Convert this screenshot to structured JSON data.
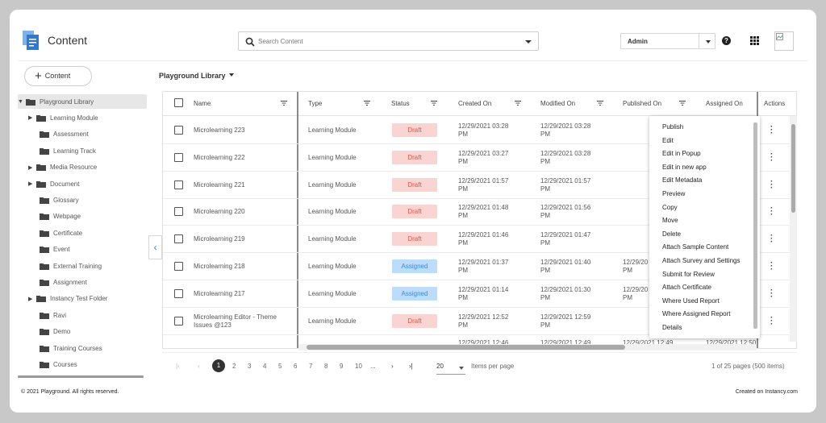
{
  "header": {
    "title": "Content",
    "logo_icon": "content-logo-icon",
    "search_placeholder": "Search Content",
    "user_select": "Admin",
    "help_icon": "?",
    "apps_icon": "grid-icon"
  },
  "sidebar": {
    "add_button": "Content",
    "add_icon": "+",
    "tree": [
      {
        "label": "Playground Library",
        "expandable": true,
        "root": true
      },
      {
        "label": "Learning Module",
        "expandable": true
      },
      {
        "label": "Assessment",
        "expandable": false
      },
      {
        "label": "Learning Track",
        "expandable": false
      },
      {
        "label": "Media Resource",
        "expandable": true
      },
      {
        "label": "Document",
        "expandable": true
      },
      {
        "label": "Glossary",
        "expandable": false
      },
      {
        "label": "Webpage",
        "expandable": false
      },
      {
        "label": "Certificate",
        "expandable": false
      },
      {
        "label": "Event",
        "expandable": false
      },
      {
        "label": "External Training",
        "expandable": false
      },
      {
        "label": "Assignment",
        "expandable": false
      },
      {
        "label": "Instancy Test Folder",
        "expandable": true
      },
      {
        "label": "Ravi",
        "expandable": false
      },
      {
        "label": "Demo",
        "expandable": false
      },
      {
        "label": "Training Courses",
        "expandable": false
      },
      {
        "label": "Courses",
        "expandable": false
      }
    ]
  },
  "library": {
    "label": "Playground Library"
  },
  "table": {
    "columns": [
      "Name",
      "Type",
      "Status",
      "Created On",
      "Modified On",
      "Published On",
      "Assigned On",
      "Actions"
    ],
    "rows": [
      {
        "name": [
          "Microlearning 223"
        ],
        "type": "Learning Module",
        "status": "Draft",
        "created": [
          "12/29/2021 03:28",
          "PM"
        ],
        "modified": [
          "12/29/2021 03:28",
          "PM"
        ],
        "published": [
          "",
          ""
        ]
      },
      {
        "name": [
          "Microlearning 222"
        ],
        "type": "Learning Module",
        "status": "Draft",
        "created": [
          "12/29/2021 03:27",
          "PM"
        ],
        "modified": [
          "12/29/2021 03:28",
          "PM"
        ],
        "published": [
          "",
          ""
        ]
      },
      {
        "name": [
          "Microlearning 221"
        ],
        "type": "Learning Module",
        "status": "Draft",
        "created": [
          "12/29/2021 01:57",
          "PM"
        ],
        "modified": [
          "12/29/2021 01:57",
          "PM"
        ],
        "published": [
          "",
          ""
        ]
      },
      {
        "name": [
          "Microlearning 220"
        ],
        "type": "Learning Module",
        "status": "Draft",
        "created": [
          "12/29/2021 01:48",
          "PM"
        ],
        "modified": [
          "12/29/2021 01:56",
          "PM"
        ],
        "published": [
          "",
          ""
        ]
      },
      {
        "name": [
          "Microlearning 219"
        ],
        "type": "Learning Module",
        "status": "Draft",
        "created": [
          "12/29/2021 01:46",
          "PM"
        ],
        "modified": [
          "12/29/2021 01:47",
          "PM"
        ],
        "published": [
          "",
          ""
        ]
      },
      {
        "name": [
          "Microlearning 218"
        ],
        "type": "Learning Module",
        "status": "Assigned",
        "created": [
          "12/29/2021 01:37",
          "PM"
        ],
        "modified": [
          "12/29/2021 01:40",
          "PM"
        ],
        "published": [
          "12/29/20",
          "PM"
        ]
      },
      {
        "name": [
          "Microlearning 217"
        ],
        "type": "Learning Module",
        "status": "Assigned",
        "created": [
          "12/29/2021 01:14",
          "PM"
        ],
        "modified": [
          "12/29/2021 01:30",
          "PM"
        ],
        "published": [
          "12/29/20",
          "PM"
        ]
      },
      {
        "name": [
          "Microlearning Editor - Theme",
          "Issues @123"
        ],
        "type": "Learning Module",
        "status": "Draft",
        "created": [
          "12/29/2021 12:52",
          "PM"
        ],
        "modified": [
          "12/29/2021 12:59",
          "PM"
        ],
        "published": [
          "",
          ""
        ]
      }
    ],
    "partial_row": {
      "created": "12/29/2021 12:46",
      "modified": "12/29/2021 12:49",
      "published": "12/29/2021 12:49",
      "assigned": "12/29/2021 12:50"
    }
  },
  "action_menu": {
    "items": [
      "Publish",
      "Edit",
      "Edit in Popup",
      "Edit in new app",
      "Edit Metadata",
      "Preview",
      "Copy",
      "Move",
      "Delete",
      "Attach Sample Content",
      "Attach Survey and Settings",
      "Submit for Review",
      "Attach Certificate",
      "Where Used Report",
      "Where Assigned Report",
      "Details"
    ]
  },
  "pagination": {
    "first": "|‹",
    "prev": "‹",
    "pages": [
      "1",
      "2",
      "3",
      "4",
      "5",
      "6",
      "7",
      "8",
      "9",
      "10"
    ],
    "ellipsis": "...",
    "next": "›",
    "last": "›|",
    "per_page": "20",
    "per_page_label": "Items per page",
    "summary": "1 of 25 pages (500 items)"
  },
  "footer": {
    "copyright": "© 2021 Playground. All rights reserved.",
    "created_on": "Created on  Instancy.com"
  },
  "colors": {
    "draft_bg": "#f9d4d0",
    "draft_text": "#e2554a",
    "assigned_bg": "#bcdcfb",
    "assigned_text": "#3a8ad8",
    "logo_blue": "#2b7bd6"
  }
}
